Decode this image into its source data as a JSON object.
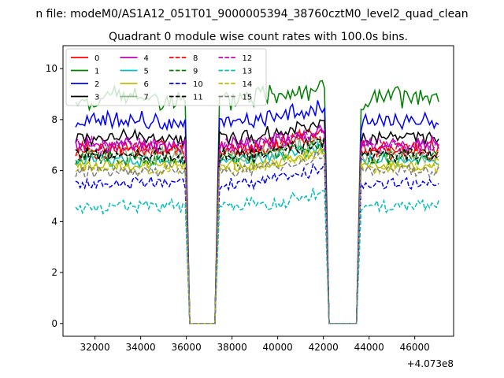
{
  "figure": {
    "suptitle": "n file: modeM0/AS1A12_051T01_9000005394_38760cztM0_level2_quad_clean",
    "offset_label": "+4.073e8"
  },
  "chart_data": {
    "type": "line",
    "title": "Quadrant 0 module wise count rates with 100.0s bins.",
    "xlabel": "",
    "ylabel": "",
    "x_offset": 407300000,
    "xlim": [
      30600,
      47700
    ],
    "ylim": [
      -0.5,
      10.9
    ],
    "x_ticks": [
      32000,
      34000,
      36000,
      38000,
      40000,
      42000,
      44000,
      46000
    ],
    "x_tick_labels": [
      "32000",
      "34000",
      "36000",
      "38000",
      "40000",
      "42000",
      "44000",
      "46000"
    ],
    "y_ticks": [
      0,
      2,
      4,
      6,
      8,
      10
    ],
    "y_tick_labels": [
      "0",
      "2",
      "4",
      "6",
      "8",
      "10"
    ],
    "grid": false,
    "legend_position": "top-left",
    "legend_columns": 4,
    "bin_size_s": 100,
    "segments": [
      [
        31150,
        35950
      ],
      [
        37450,
        42050
      ],
      [
        43650,
        47050
      ]
    ],
    "gaps": [
      [
        36150,
        37250
      ],
      [
        42250,
        43450
      ]
    ],
    "series": [
      {
        "name": "0",
        "color": "#ff0000",
        "dash": "solid",
        "mean": 6.9,
        "amplitude": 0.25,
        "slope": 0.0
      },
      {
        "name": "1",
        "color": "#008000",
        "dash": "solid",
        "mean": 8.6,
        "amplitude": 0.35,
        "slope": 0.3
      },
      {
        "name": "2",
        "color": "#0000ff",
        "dash": "solid",
        "mean": 7.8,
        "amplitude": 0.3,
        "slope": 0.2
      },
      {
        "name": "3",
        "color": "#000000",
        "dash": "solid",
        "mean": 7.3,
        "amplitude": 0.25,
        "slope": 0.0
      },
      {
        "name": "4",
        "color": "#bf00bf",
        "dash": "solid",
        "mean": 7.0,
        "amplitude": 0.25,
        "slope": 0.0
      },
      {
        "name": "5",
        "color": "#00bfbf",
        "dash": "solid",
        "mean": 6.4,
        "amplitude": 0.2,
        "slope": 0.0
      },
      {
        "name": "6",
        "color": "#bfbf00",
        "dash": "solid",
        "mean": 6.2,
        "amplitude": 0.2,
        "slope": 0.0
      },
      {
        "name": "7",
        "color": "#88bb88",
        "dash": "solid",
        "mean": 6.6,
        "amplitude": 0.25,
        "slope": 0.0
      },
      {
        "name": "8",
        "color": "#ff0000",
        "dash": "dashed",
        "mean": 6.7,
        "amplitude": 0.25,
        "slope": 0.1
      },
      {
        "name": "9",
        "color": "#008000",
        "dash": "dashed",
        "mean": 6.5,
        "amplitude": 0.25,
        "slope": 0.0
      },
      {
        "name": "10",
        "color": "#0000ff",
        "dash": "dashed",
        "mean": 5.5,
        "amplitude": 0.2,
        "slope": 0.0
      },
      {
        "name": "11",
        "color": "#000000",
        "dash": "dashed",
        "mean": 6.6,
        "amplitude": 0.25,
        "slope": 0.0
      },
      {
        "name": "12",
        "color": "#bf00bf",
        "dash": "dashed",
        "mean": 7.0,
        "amplitude": 0.25,
        "slope": 0.0
      },
      {
        "name": "13",
        "color": "#00bfbf",
        "dash": "dashed",
        "mean": 4.6,
        "amplitude": 0.2,
        "slope": 0.0
      },
      {
        "name": "14",
        "color": "#bfbf00",
        "dash": "dashed",
        "mean": 6.1,
        "amplitude": 0.2,
        "slope": 0.0
      },
      {
        "name": "15",
        "color": "#808080",
        "dash": "dashed",
        "mean": 6.0,
        "amplitude": 0.2,
        "slope": 0.0
      }
    ]
  }
}
